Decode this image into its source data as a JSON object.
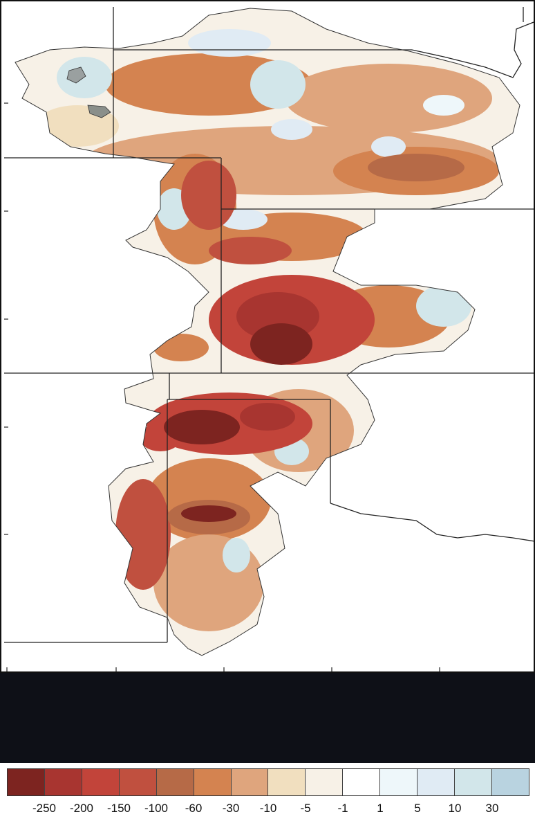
{
  "map": {
    "colors": {
      "c250": "#7d2420",
      "c200": "#a83530",
      "c150": "#c2443a",
      "c100": "#c0503f",
      "c60": "#b66a47",
      "c30": "#d48350",
      "c10": "#dfa57d",
      "c5": "#f1dfbf",
      "c1": "#f7f1e7",
      "n1": "#ffffff",
      "p5": "#eef7fa",
      "p10": "#e0ebf4",
      "p30": "#d2e6ea",
      "p50": "#b9d3e0"
    }
  },
  "legend": {
    "colors": [
      "#7d2420",
      "#a83530",
      "#c2443a",
      "#c0503f",
      "#b66a47",
      "#d48350",
      "#dfa57d",
      "#f1dfbf",
      "#f7f1e7",
      "#ffffff",
      "#eef7fa",
      "#e0ebf4",
      "#d2e6ea",
      "#b9d3e0"
    ],
    "labels": [
      "-250",
      "-200",
      "-150",
      "-100",
      "-60",
      "-30",
      "-10",
      "-5",
      "-1",
      "1",
      "5",
      "10",
      "30"
    ]
  }
}
